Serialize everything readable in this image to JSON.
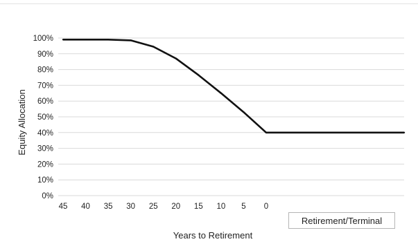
{
  "chart_data": {
    "type": "line",
    "title": "",
    "xlabel": "Years to Retirement",
    "ylabel": "Equity Allocation",
    "x_categories": [
      "45",
      "40",
      "35",
      "30",
      "25",
      "20",
      "15",
      "10",
      "5",
      "0"
    ],
    "terminal_label": "Retirement/Terminal",
    "y_ticks": [
      "0%",
      "10%",
      "20%",
      "30%",
      "40%",
      "50%",
      "60%",
      "70%",
      "80%",
      "90%",
      "100%"
    ],
    "ylim": [
      0,
      100
    ],
    "xlim": [
      45,
      -15
    ],
    "grid": "horizontal",
    "series": [
      {
        "x": [
          45,
          40,
          35,
          30,
          25,
          20,
          15,
          10,
          5,
          0,
          -15
        ],
        "values": [
          99,
          99,
          99,
          98.5,
          94.5,
          87,
          76.5,
          65,
          53,
          40,
          40
        ]
      }
    ]
  },
  "colors": {
    "line": "#111111",
    "grid": "#d9d9d9",
    "text": "#222222",
    "box_border": "#b5b5b5"
  }
}
